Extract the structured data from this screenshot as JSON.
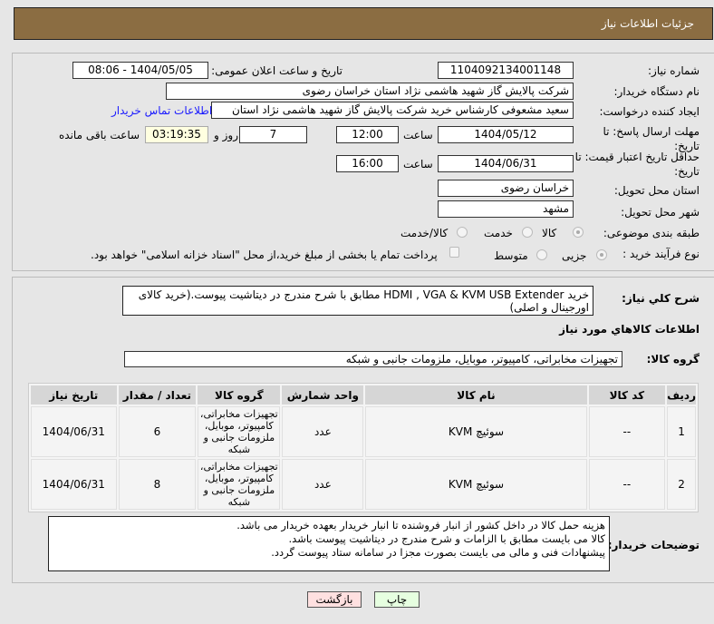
{
  "header": {
    "title": "جزئیات اطلاعات نیاز"
  },
  "form": {
    "need_number_label": "شماره نیاز:",
    "need_number": "1104092134001148",
    "announce_label": "تاریخ و ساعت اعلان عمومی:",
    "announce_value": "1404/05/05 - 08:06",
    "buyer_org_label": "نام دستگاه خریدار:",
    "buyer_org": "شرکت پالایش گاز شهید هاشمی نژاد   استان خراسان رضوی",
    "creator_label": "ایجاد کننده درخواست:",
    "creator": "سعید مشعوفی کارشناس خرید شرکت پالایش گاز شهید هاشمی نژاد   استان",
    "contact_link": "اطلاعات تماس خریدار",
    "reply_deadline_label": "مهلت ارسال پاسخ: تا تاریخ:",
    "reply_date": "1404/05/12",
    "time_label": "ساعت",
    "reply_time": "12:00",
    "days": "7",
    "days_label": "روز و",
    "remaining": "03:19:35",
    "remaining_label": "ساعت باقی مانده",
    "price_validity_label": "حداقل تاریخ اعتبار قیمت: تا تاریخ:",
    "price_date": "1404/06/31",
    "price_time": "16:00",
    "province_label": "استان محل تحویل:",
    "province": "خراسان رضوی",
    "city_label": "شهر محل تحویل:",
    "city": "مشهد",
    "category_label": "طبقه بندی موضوعی:",
    "category_options": [
      "کالا",
      "خدمت",
      "کالا/خدمت"
    ],
    "category_selected": "کالا",
    "process_label": "نوع فرآیند خرید :",
    "process_options": [
      "جزیی",
      "متوسط"
    ],
    "process_selected": "جزیی",
    "treasury_text": "پرداخت تمام یا بخشی از مبلغ خرید،از محل \"اسناد خزانه اسلامی\" خواهد بود."
  },
  "details": {
    "summary_label": "شرح کلي نياز:",
    "summary": "خرید HDMI , VGA & KVM USB Extender مطابق با شرح مندرج در دیتاشیت پیوست.(خرید کالای اورجینال و اصلی)",
    "goods_info_title": "اطلاعات كالاهاي مورد نياز",
    "goods_group_label": "گروه کالا:",
    "goods_group": "تجهیزات مخابراتی، کامپیوتر، موبایل، ملزومات جانبی و شبکه",
    "table": {
      "columns": [
        "ردیف",
        "کد کالا",
        "نام کالا",
        "واحد شمارش",
        "گروه کالا",
        "تعداد / مقدار",
        "تاریخ نیاز"
      ],
      "rows": [
        [
          "1",
          "--",
          "سوئیچ KVM",
          "عدد",
          "تجهیزات مخابراتی، کامپیوتر، موبایل، ملزومات جانبی و شبکه",
          "6",
          "1404/06/31"
        ],
        [
          "2",
          "--",
          "سوئیچ KVM",
          "عدد",
          "تجهیزات مخابراتی، کامپیوتر، موبایل، ملزومات جانبی و شبکه",
          "8",
          "1404/06/31"
        ]
      ]
    },
    "notes_label": "توضیحات خریدار:",
    "notes": [
      "هزینه حمل کالا در داخل کشور از انبار فروشنده تا انبار خریدار بعهده خریدار می باشد.",
      "کالا می بایست مطابق با الزامات و شرح مندرج در دیتاشیت پیوست باشد.",
      "پیشنهادات فنی و مالی می بایست بصورت مجزا در سامانه ستاد پیوست گردد."
    ]
  },
  "buttons": {
    "print": "چاپ",
    "back": "بازگشت"
  },
  "colors": {
    "header": "#8b6d42",
    "print_bg": "#e6ffe0",
    "back_bg": "#ffe0e0",
    "remaining_bg": "#ffffe0"
  }
}
